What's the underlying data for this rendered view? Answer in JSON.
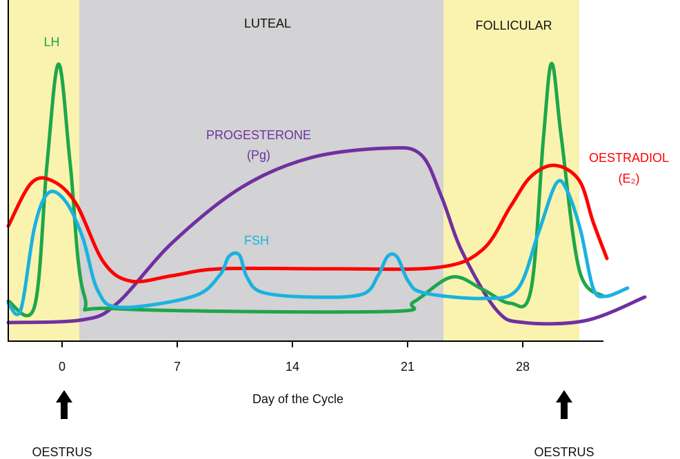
{
  "regions": {
    "luteal": "LUTEAL",
    "follicular": "FOLLICULAR"
  },
  "curves": {
    "lh": "LH",
    "progesterone": "PROGESTERONE",
    "progesterone_abbr": "(Pg)",
    "fsh": "FSH",
    "oestradiol": "OESTRADIOL",
    "oestradiol_abbr": "(E₂)"
  },
  "axis": {
    "ticks": [
      0,
      7,
      14,
      21,
      28
    ],
    "label": "Day of the Cycle"
  },
  "markers": [
    "OESTRUS",
    "OESTRUS"
  ]
}
